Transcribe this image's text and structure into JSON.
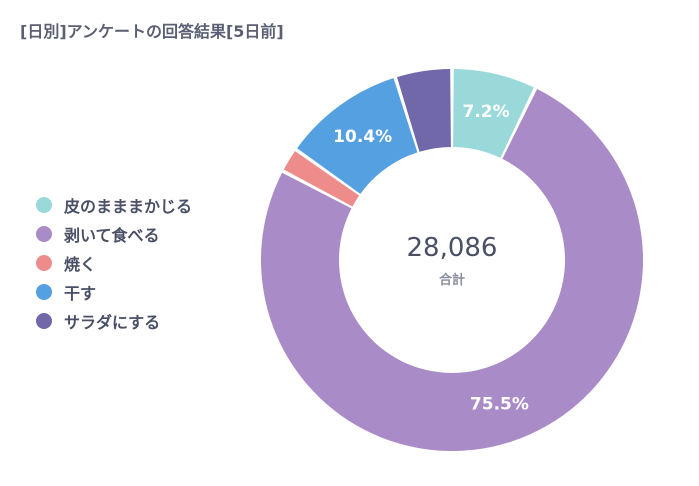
{
  "title": "[日別]アンケートの回答結果[5日前]",
  "chart_data": {
    "type": "pie",
    "title": "[日別]アンケートの回答結果[5日前]",
    "legend_position": "left",
    "categories": [
      "皮のまままかじる",
      "剥いて食べる",
      "焼く",
      "干す",
      "サラダにする"
    ],
    "values": [
      7.2,
      75.5,
      2.1,
      10.4,
      4.8
    ],
    "data_labels": [
      "7.2%",
      "75.5%",
      "",
      "10.4%",
      ""
    ],
    "colors": [
      "#9ad9da",
      "#a98bc7",
      "#ee8c8c",
      "#54a0e0",
      "#7068a8"
    ],
    "total_value": "28,086",
    "total_label": "合計"
  },
  "legend": [
    {
      "label": "皮のまままかじる",
      "color": "#9ad9da"
    },
    {
      "label": "剥いて食べる",
      "color": "#a98bc7"
    },
    {
      "label": "焼く",
      "color": "#ee8c8c"
    },
    {
      "label": "干す",
      "color": "#54a0e0"
    },
    {
      "label": "サラダにする",
      "color": "#7068a8"
    }
  ]
}
